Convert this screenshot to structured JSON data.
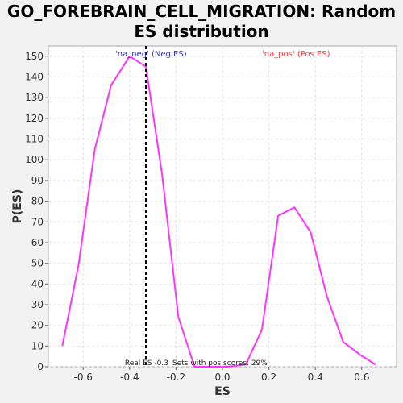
{
  "chart_data": {
    "type": "line",
    "title": "GO_FOREBRAIN_CELL_MIGRATION: Random ES distribution",
    "xlabel": "ES",
    "ylabel": "P(ES)",
    "xlim": [
      -0.75,
      0.75
    ],
    "ylim": [
      0,
      155
    ],
    "xticks": [
      -0.6,
      -0.4,
      -0.2,
      0.0,
      0.2,
      0.4,
      0.6
    ],
    "xtick_labels": [
      "-0.6",
      "-0.4",
      "-0.2",
      "0.0",
      "0.2",
      "0.4",
      "0.6"
    ],
    "yticks": [
      0,
      10,
      20,
      30,
      40,
      50,
      60,
      70,
      80,
      90,
      100,
      110,
      120,
      130,
      140,
      150
    ],
    "ytick_labels": [
      "0",
      "10",
      "20",
      "30",
      "40",
      "50",
      "60",
      "70",
      "80",
      "90",
      "100",
      "110",
      "120",
      "130",
      "140",
      "150"
    ],
    "grid": true,
    "series": [
      {
        "color": "#ff33ff",
        "x": [
          -0.69,
          -0.62,
          -0.55,
          -0.48,
          -0.4,
          -0.33,
          -0.26,
          -0.19,
          -0.12,
          -0.05,
          0.02,
          0.1,
          0.17,
          0.24,
          0.31,
          0.38,
          0.45,
          0.52,
          0.59,
          0.66
        ],
        "y": [
          10,
          49,
          105,
          136,
          150,
          145,
          93,
          24,
          0,
          0,
          0,
          1,
          18,
          73,
          77,
          65,
          34,
          12,
          6,
          1
        ]
      }
    ],
    "legend": [
      {
        "label": "'na_neg' (Neg ES)",
        "color": "#3333cc"
      },
      {
        "label": "'na_pos' (Pos ES)",
        "color": "#ff3333"
      }
    ],
    "real_es": {
      "value": -0.33,
      "label": "Real ES -0.3"
    },
    "annotation": "Sets with pos scores: 29%"
  }
}
